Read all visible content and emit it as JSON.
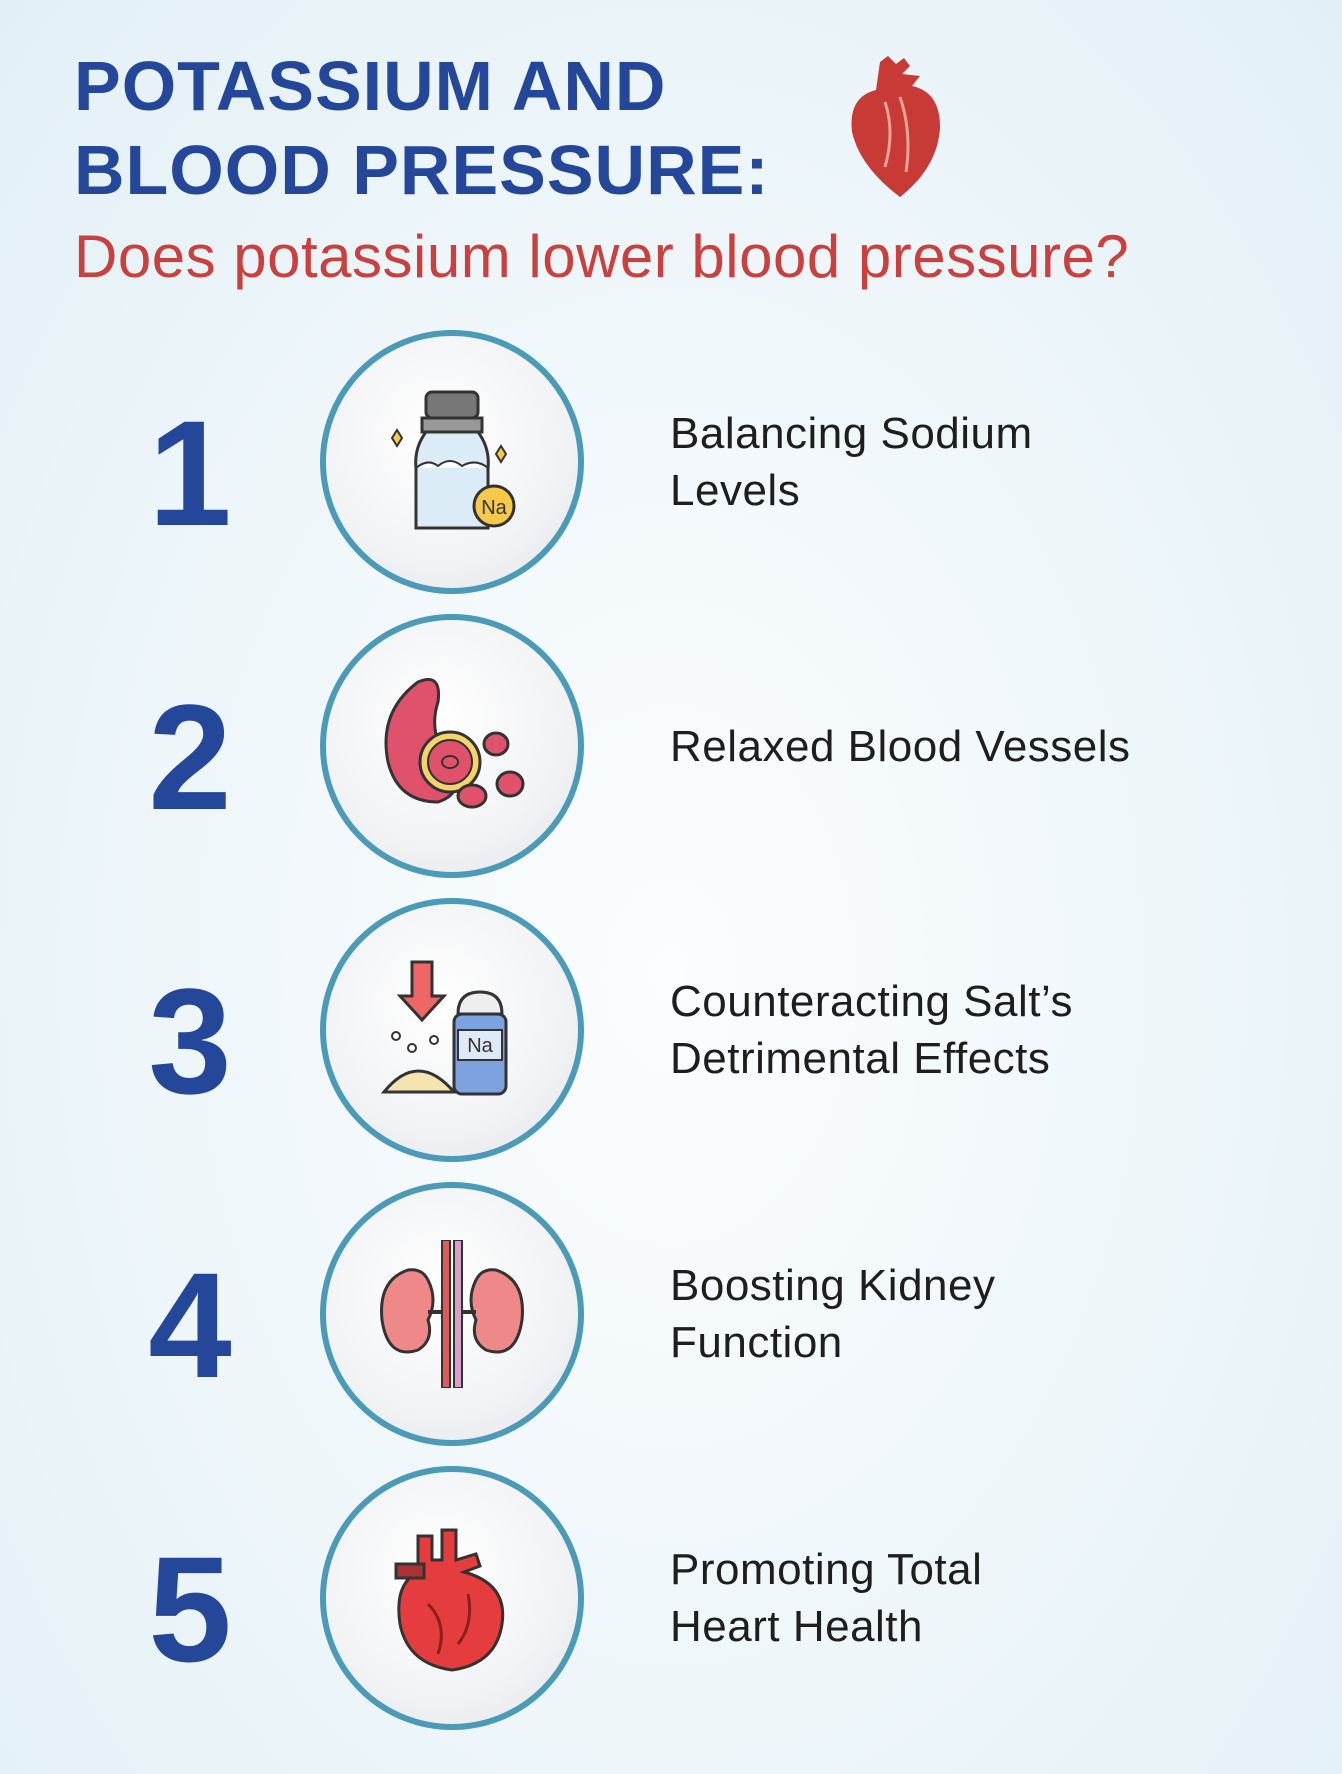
{
  "header": {
    "title_line1": "POTASSIUM AND",
    "title_line2": "BLOOD PRESSURE:",
    "subtitle": "Does potassium lower blood pressure?",
    "icon": "heart-icon"
  },
  "items": [
    {
      "number": "1",
      "line1": "Balancing Sodium",
      "line2": "Levels",
      "icon": "salt-shaker-icon",
      "badge": "Na"
    },
    {
      "number": "2",
      "line1": "Relaxed Blood Vessels",
      "line2": "",
      "icon": "blood-cells-icon"
    },
    {
      "number": "3",
      "line1": "Counteracting Salt’s",
      "line2": "Detrimental Effects",
      "icon": "salt-reduction-icon",
      "badge": "Na"
    },
    {
      "number": "4",
      "line1": "Boosting Kidney",
      "line2": "Function",
      "icon": "kidneys-icon"
    },
    {
      "number": "5",
      "line1": "Promoting Total",
      "line2": "Heart Health",
      "icon": "heart-organ-icon"
    }
  ],
  "colors": {
    "title": "#24479a",
    "subtitle": "#c9403f",
    "ring": "#4a9ab8"
  }
}
